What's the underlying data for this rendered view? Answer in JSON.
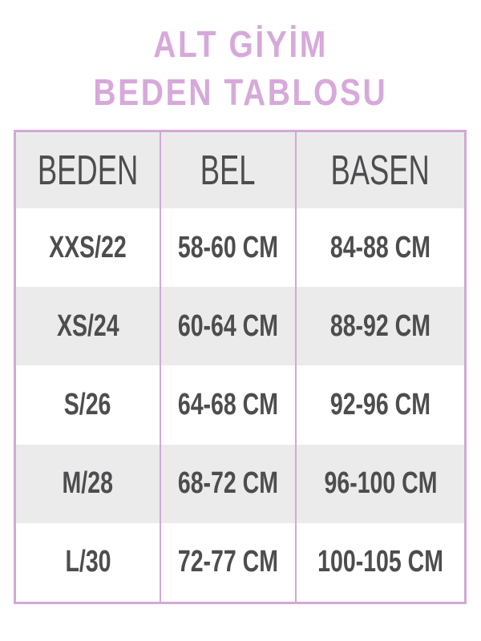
{
  "title": {
    "line1": "ALT GİYİM",
    "line2": "BEDEN TABLOSU"
  },
  "colors": {
    "accent": "#d7a9da",
    "text": "#4d4d4f",
    "stripe": "#ebebeb"
  },
  "table": {
    "headers": [
      "BEDEN",
      "BEL",
      "BASEN"
    ],
    "rows": [
      [
        "XXS/22",
        "58-60 CM",
        "84-88 CM"
      ],
      [
        "XS/24",
        "60-64 CM",
        "88-92 CM"
      ],
      [
        "S/26",
        "64-68 CM",
        "92-96 CM"
      ],
      [
        "M/28",
        "68-72 CM",
        "96-100 CM"
      ],
      [
        "L/30",
        "72-77 CM",
        "100-105 CM"
      ]
    ]
  }
}
